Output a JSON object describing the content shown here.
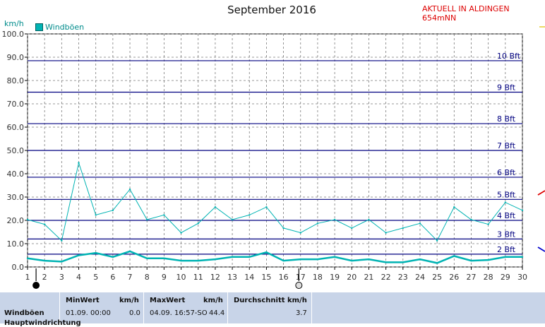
{
  "header": {
    "title": "September 2016",
    "station": "AKTUELL IN ALDINGEN 654mNN",
    "unit": "km/h",
    "legend_label": "Windböen"
  },
  "colors": {
    "series": "#00b3b3",
    "beaufort_line": "#000080",
    "beaufort_label": "#000080",
    "station_text": "#dd0000",
    "panel_bg": "#c8d4e8"
  },
  "chart_data": {
    "type": "line",
    "title": "September 2016",
    "ylabel": "km/h",
    "ylim": [
      0,
      100
    ],
    "xlim": [
      1,
      30
    ],
    "grid": true,
    "legend_position": "top-left",
    "x": [
      1,
      2,
      3,
      4,
      5,
      6,
      7,
      8,
      9,
      10,
      11,
      12,
      13,
      14,
      15,
      16,
      17,
      18,
      19,
      20,
      21,
      22,
      23,
      24,
      25,
      26,
      27,
      28,
      29,
      30
    ],
    "y_ticks": [
      "0.0",
      "10.0",
      "20.0",
      "30.0",
      "40.0",
      "50.0",
      "60.0",
      "70.0",
      "80.0",
      "90.0",
      "100.0"
    ],
    "x_ticks": [
      "1",
      "2",
      "3",
      "4",
      "5",
      "6",
      "7",
      "8",
      "9",
      "10",
      "11",
      "12",
      "13",
      "14",
      "15",
      "16",
      "17",
      "18",
      "19",
      "20",
      "21",
      "22",
      "23",
      "24",
      "25",
      "26",
      "27",
      "28",
      "29",
      "30"
    ],
    "series": [
      {
        "name": "Windböen",
        "values": [
          20.3,
          18.3,
          11.3,
          44.7,
          22.3,
          24.3,
          33.3,
          20.3,
          22.3,
          14.7,
          18.7,
          25.7,
          20.3,
          22.3,
          25.7,
          16.7,
          14.7,
          18.7,
          20.3,
          16.7,
          20.3,
          14.7,
          16.7,
          18.7,
          11.3,
          25.7,
          20.3,
          18.3,
          27.7,
          24.3
        ]
      },
      {
        "values": [
          3.7,
          2.7,
          2.3,
          5.0,
          6.0,
          4.3,
          6.7,
          3.7,
          3.7,
          2.7,
          2.7,
          3.3,
          4.3,
          4.3,
          6.3,
          2.7,
          3.3,
          3.3,
          4.3,
          2.7,
          3.3,
          2.0,
          2.0,
          3.3,
          1.7,
          4.7,
          2.7,
          3.0,
          4.3,
          4.3
        ]
      }
    ],
    "beaufort_levels": [
      {
        "label": "2 Bft",
        "value": 5.5
      },
      {
        "label": "3 Bft",
        "value": 12.0
      },
      {
        "label": "4 Bft",
        "value": 20.0
      },
      {
        "label": "5 Bft",
        "value": 29.0
      },
      {
        "label": "6 Bft",
        "value": 38.5
      },
      {
        "label": "7 Bft",
        "value": 50.0
      },
      {
        "label": "8 Bft",
        "value": 61.5
      },
      {
        "label": "9 Bft",
        "value": 75.0
      },
      {
        "label": "10 Bft",
        "value": 88.5
      }
    ],
    "day_markers": [
      {
        "day": 1.5,
        "symbol": "full-moon-dark"
      },
      {
        "day": 16.9,
        "symbol": "full-moon-light"
      }
    ]
  },
  "stats_panel": {
    "row_label": "Windböen",
    "row_label_2": "Hauptwindrichtung",
    "min_header": "MinWert",
    "min_unit": "km/h",
    "min_date": "01.09.  00:00",
    "min_value": "0.0",
    "max_header": "MaxWert",
    "max_unit": "km/h",
    "max_date": "04.09.  16:57-SO",
    "max_value": "44.4",
    "avg_header": "Durchschnitt km/h",
    "avg_value": "3.7"
  }
}
